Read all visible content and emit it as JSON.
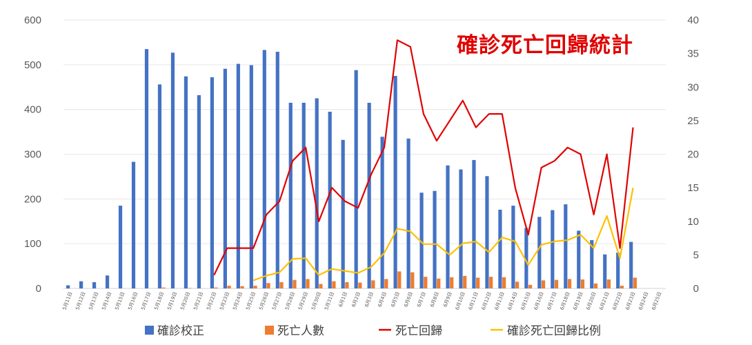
{
  "chart_data": {
    "type": "bar",
    "title": "確診死亡回歸統計",
    "categories": [
      "5月11日",
      "5月12日",
      "5月13日",
      "5月14日",
      "5月15日",
      "5月16日",
      "5月17日",
      "5月18日",
      "5月19日",
      "5月20日",
      "5月21日",
      "5月22日",
      "5月23日",
      "5月24日",
      "5月25日",
      "5月26日",
      "5月27日",
      "5月28日",
      "5月29日",
      "5月30日",
      "5月31日",
      "6月1日",
      "6月2日",
      "6月3日",
      "6月4日",
      "6月5日",
      "6月6日",
      "6月7日",
      "6月8日",
      "6月9日",
      "6月10日",
      "6月11日",
      "6月12日",
      "6月13日",
      "6月14日",
      "6月15日",
      "6月16日",
      "6月17日",
      "6月18日",
      "6月19日",
      "6月20日",
      "6月21日",
      "6月22日",
      "6月23日",
      "6月24日",
      "6月25日"
    ],
    "left_axis": {
      "ylim": [
        0,
        600
      ],
      "ticks": [
        "0",
        "100",
        "200",
        "300",
        "400",
        "500",
        "600"
      ]
    },
    "right_axis": {
      "ylim": [
        0,
        40
      ],
      "ticks": [
        "0",
        "5",
        "10",
        "15",
        "20",
        "25",
        "30",
        "35",
        "40"
      ]
    },
    "gridlines": true,
    "legend_position": "bottom",
    "series": [
      {
        "name": "確診校正",
        "kind": "bar",
        "axis": "left",
        "color": "#4472c4",
        "values": [
          7,
          16,
          14,
          29,
          185,
          283,
          535,
          456,
          527,
          474,
          432,
          472,
          491,
          502,
          499,
          533,
          529,
          415,
          415,
          425,
          395,
          332,
          488,
          415,
          339,
          475,
          335,
          214,
          218,
          275,
          266,
          287,
          251,
          176,
          185,
          135,
          160,
          175,
          188,
          129,
          108,
          76,
          80,
          104,
          0,
          0
        ]
      },
      {
        "name": "死亡人數",
        "kind": "bar",
        "axis": "left",
        "color": "#ed7d31",
        "values": [
          0,
          0,
          0,
          0,
          0,
          0,
          0,
          2,
          0,
          1,
          0,
          2,
          6,
          5,
          6,
          12,
          14,
          19,
          21,
          10,
          16,
          14,
          13,
          18,
          21,
          38,
          36,
          26,
          22,
          25,
          28,
          24,
          26,
          25,
          15,
          8,
          18,
          19,
          21,
          20,
          11,
          20,
          6,
          24,
          0,
          0
        ]
      },
      {
        "name": "死亡回歸",
        "kind": "line",
        "axis": "right",
        "color": "#e00000",
        "values": [
          null,
          null,
          null,
          null,
          null,
          null,
          null,
          null,
          null,
          null,
          null,
          2,
          6,
          6,
          6,
          11,
          13,
          19,
          21,
          10,
          15,
          13,
          12,
          17,
          21,
          37,
          36,
          26,
          22,
          25,
          28,
          24,
          26,
          26,
          15,
          8,
          18,
          19,
          21,
          20,
          11,
          20,
          6,
          24,
          null,
          null
        ]
      },
      {
        "name": "確診死亡回歸比例",
        "kind": "line",
        "axis": "right",
        "color": "#ffc000",
        "values": [
          null,
          null,
          null,
          null,
          null,
          null,
          null,
          null,
          null,
          null,
          null,
          null,
          null,
          null,
          1.2,
          1.9,
          2.4,
          4.4,
          4.5,
          2.0,
          2.9,
          2.6,
          2.3,
          3.2,
          5.3,
          8.9,
          8.5,
          6.6,
          6.6,
          5.0,
          6.7,
          7.0,
          5.4,
          7.6,
          7.0,
          3.5,
          6.5,
          7.0,
          7.2,
          8.0,
          6.0,
          10.8,
          4.5,
          15.0,
          null,
          null
        ]
      }
    ]
  }
}
